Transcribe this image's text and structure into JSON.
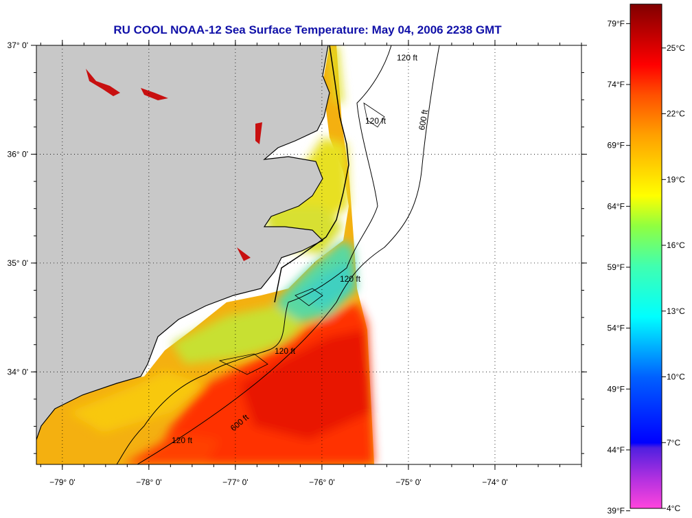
{
  "title": "RU COOL  NOAA-12  Sea Surface Temperature:  May 04, 2006 2238 GMT",
  "map": {
    "lon_range": [
      -79.3,
      -73.0
    ],
    "lat_range": [
      33.15,
      37.0
    ],
    "lon_ticks": [
      {
        "value": -79,
        "label": "−79° 0'"
      },
      {
        "value": -78,
        "label": "−78° 0'"
      },
      {
        "value": -77,
        "label": "−77° 0'"
      },
      {
        "value": -76,
        "label": "−76° 0'"
      },
      {
        "value": -75,
        "label": "−75° 0'"
      },
      {
        "value": -74,
        "label": "−74° 0'"
      }
    ],
    "lat_ticks": [
      {
        "value": 37,
        "label": "37° 0'"
      },
      {
        "value": 36,
        "label": "36° 0'"
      },
      {
        "value": 35,
        "label": "35° 0'"
      },
      {
        "value": 34,
        "label": "34° 0'"
      }
    ],
    "contour_labels": [
      "120 ft",
      "600 ft"
    ],
    "colors": {
      "land": "#c8c8c8",
      "ocean_nodata": "#ffffff",
      "cool_shelf": "#5ad89a",
      "warm_gulfstream": "#f02000"
    }
  },
  "colorbar": {
    "range_c": [
      4,
      27
    ],
    "celsius_labels": [
      "25°C",
      "22°C",
      "19°C",
      "16°C",
      "13°C",
      "10°C",
      "7°C",
      "4°C"
    ],
    "celsius_values": [
      25,
      22,
      19,
      16,
      13,
      10,
      7,
      4
    ],
    "fahrenheit_labels": [
      "79°F",
      "74°F",
      "69°F",
      "64°F",
      "59°F",
      "54°F",
      "49°F",
      "44°F",
      "39°F"
    ],
    "fahrenheit_values": [
      79,
      74,
      69,
      64,
      59,
      54,
      49,
      44,
      39
    ]
  }
}
